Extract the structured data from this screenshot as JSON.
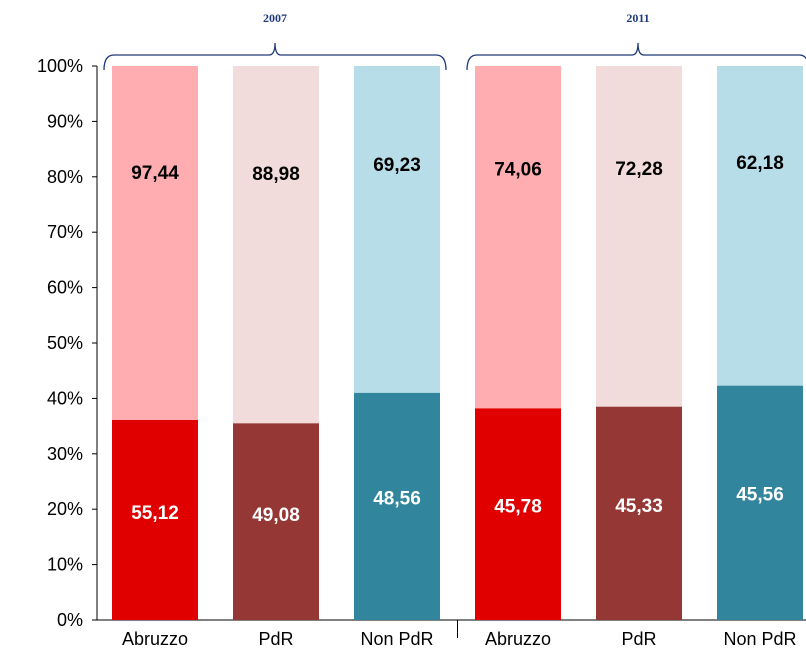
{
  "chart_data": {
    "type": "bar",
    "stacked": true,
    "ylim": [
      0,
      100
    ],
    "yticks": [
      "0%",
      "10%",
      "20%",
      "30%",
      "40%",
      "50%",
      "60%",
      "70%",
      "80%",
      "90%",
      "100%"
    ],
    "groups": [
      {
        "label": "2007",
        "bars": [
          {
            "category": "Abruzzo",
            "lower_value": 55.12,
            "upper_value": 97.44,
            "lower_label": "55,12",
            "upper_label": "97,44",
            "lower_share": 36.1,
            "lower_color": "#e00000",
            "upper_color": "#ffadb0"
          },
          {
            "category": "PdR",
            "lower_value": 49.08,
            "upper_value": 88.98,
            "lower_label": "49,08",
            "upper_label": "88,98",
            "lower_share": 35.5,
            "lower_color": "#953735",
            "upper_color": "#f2dcdb"
          },
          {
            "category": "Non PdR",
            "lower_value": 48.56,
            "upper_value": 69.23,
            "lower_label": "48,56",
            "upper_label": "69,23",
            "lower_share": 41.0,
            "lower_color": "#31859c",
            "upper_color": "#b7dde8"
          }
        ]
      },
      {
        "label": "2011",
        "bars": [
          {
            "category": "Abruzzo",
            "lower_value": 45.78,
            "upper_value": 74.06,
            "lower_label": "45,78",
            "upper_label": "74,06",
            "lower_share": 38.2,
            "lower_color": "#e00000",
            "upper_color": "#ffadb0"
          },
          {
            "category": "PdR",
            "lower_value": 45.33,
            "upper_value": 72.28,
            "lower_label": "45,33",
            "upper_label": "72,28",
            "lower_share": 38.5,
            "lower_color": "#953735",
            "upper_color": "#f2dcdb"
          },
          {
            "category": "Non PdR",
            "lower_value": 45.56,
            "upper_value": 62.18,
            "lower_label": "45,56",
            "upper_label": "62,18",
            "lower_share": 42.3,
            "lower_color": "#31859c",
            "upper_color": "#b7dde8"
          }
        ]
      }
    ],
    "bracket_color": "#1f3a7a",
    "grid": false,
    "legend": "none"
  }
}
